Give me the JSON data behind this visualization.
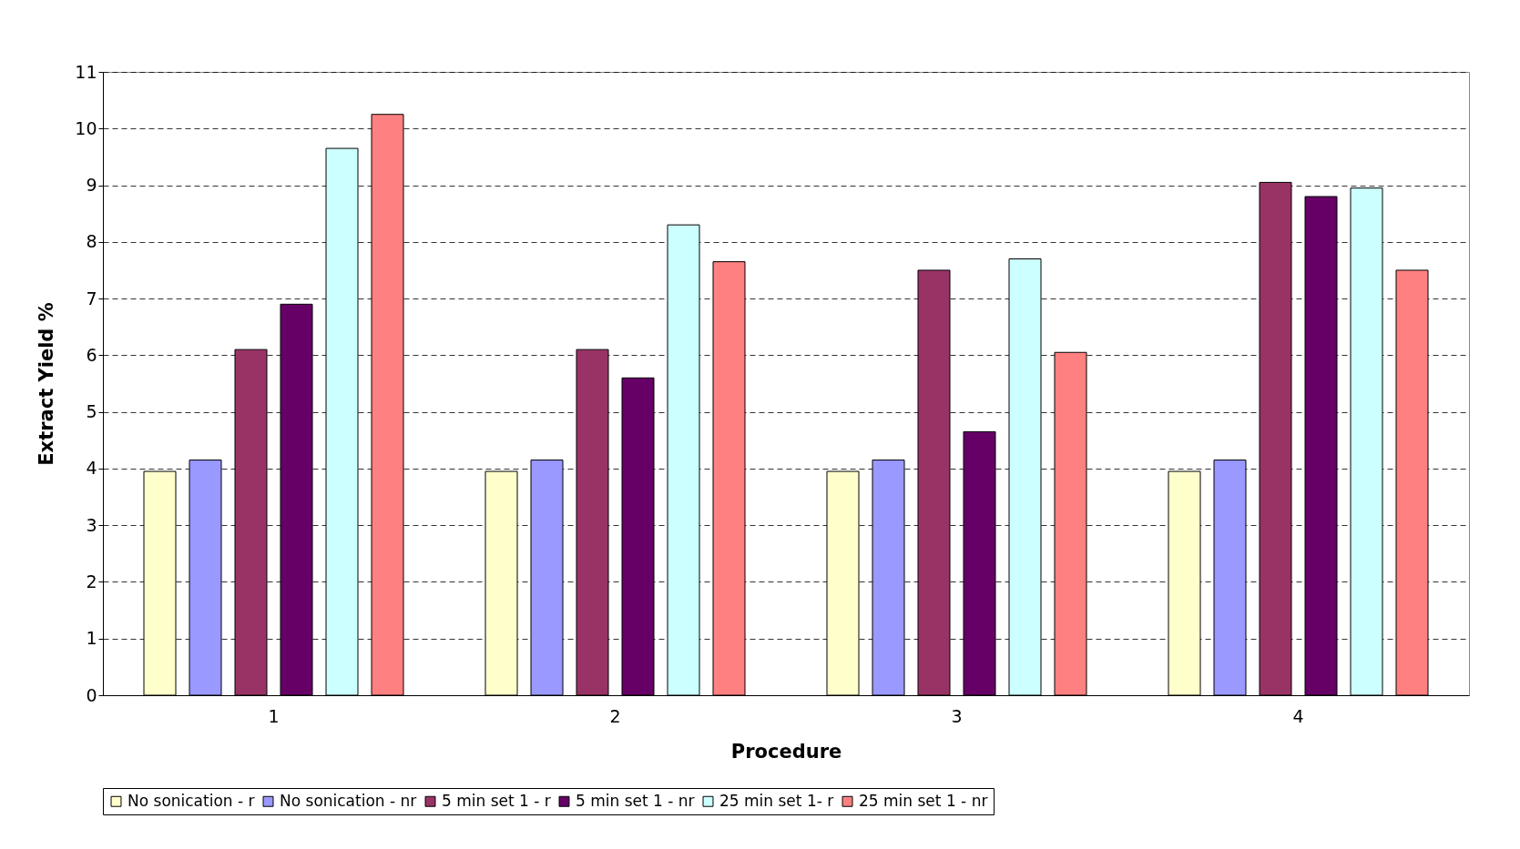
{
  "chart_data": {
    "type": "bar",
    "xlabel": "Procedure",
    "ylabel": "Extract Yield %",
    "categories": [
      "1",
      "2",
      "3",
      "4"
    ],
    "series": [
      {
        "name": "No sonication - r",
        "color": "#ffffcc",
        "values": [
          3.95,
          3.95,
          3.95,
          3.95
        ]
      },
      {
        "name": "No sonication - nr",
        "color": "#9999ff",
        "values": [
          4.15,
          4.15,
          4.15,
          4.15
        ]
      },
      {
        "name": "5 min set 1 - r",
        "color": "#993366",
        "values": [
          6.1,
          6.1,
          7.5,
          9.05
        ]
      },
      {
        "name": "5 min set 1 - nr",
        "color": "#660066",
        "values": [
          6.9,
          5.6,
          4.65,
          8.8
        ]
      },
      {
        "name": "25 min set 1- r",
        "color": "#ccffff",
        "values": [
          9.65,
          8.3,
          7.7,
          8.95
        ]
      },
      {
        "name": "25 min set 1 - nr",
        "color": "#ff8080",
        "values": [
          10.25,
          7.65,
          6.05,
          7.5
        ]
      }
    ],
    "ylim": [
      0,
      11
    ],
    "yticks": [
      0,
      1,
      2,
      3,
      4,
      5,
      6,
      7,
      8,
      9,
      10,
      11
    ],
    "grid": "y",
    "legend": "bottom"
  }
}
